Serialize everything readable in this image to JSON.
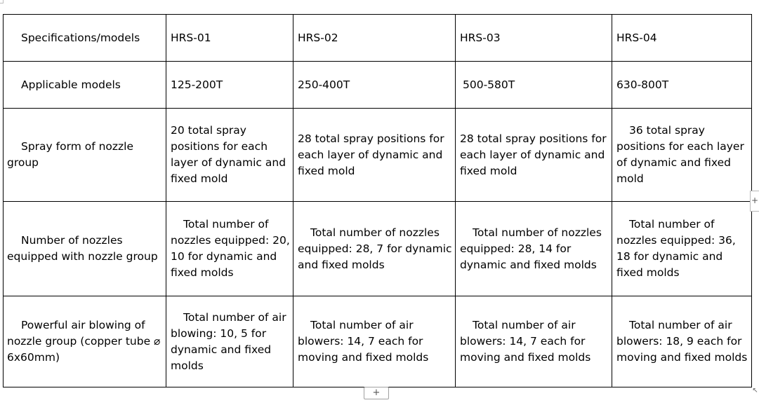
{
  "table": {
    "header": {
      "label": "Specifications/models",
      "models": [
        "HRS-01",
        "HRS-02",
        "HRS-03",
        "HRS-04"
      ]
    },
    "applicable_models": {
      "label": "Applicable models",
      "values": [
        "125-200T",
        "250-400T",
        "500-580T",
        "630-800T"
      ]
    },
    "spray_form": {
      "label": "Spray form of nozzle group",
      "values": [
        "20 total spray positions for each layer of dynamic and fixed mold",
        "28 total spray positions for each layer of dynamic and fixed mold",
        "28 total spray positions for each layer of dynamic and fixed mold",
        "36 total spray positions for each layer of dynamic and fixed mold"
      ]
    },
    "nozzles_equipped": {
      "label": "Number of nozzles equipped with nozzle group",
      "values": [
        "Total number of nozzles equipped: 20, 10 for dynamic and fixed molds",
        "Total number of nozzles equipped: 28, 7 for dynamic and fixed molds",
        "Total number of nozzles equipped: 28, 14 for dynamic and fixed molds",
        "Total number of nozzles equipped: 36, 18 for dynamic and fixed molds"
      ]
    },
    "air_blowing": {
      "label": "Powerful air blowing of nozzle group (copper tube ⌀ 6x60mm)",
      "values": [
        "Total number of air blowing: 10, 5 for dynamic and fixed molds",
        "Total number of air blowers: 14, 7 each for moving and fixed molds",
        "Total number of air blowers: 14, 7 each for moving and fixed molds",
        "Total number of air blowers: 18, 9 each for moving and fixed molds"
      ]
    }
  },
  "controls": {
    "add_row_label": "+",
    "add_column_label": "+",
    "resize_icon": "resize-corner-icon",
    "resize_glyph": "↖"
  }
}
